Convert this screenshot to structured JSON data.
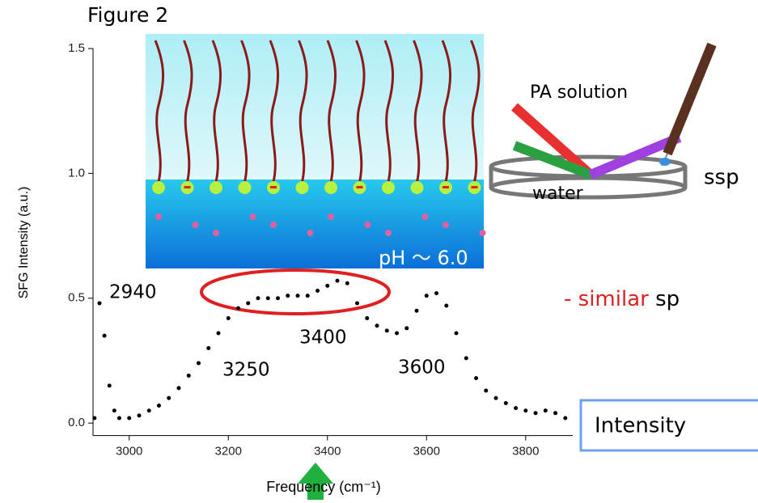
{
  "chart_data": {
    "type": "scatter",
    "title": "Figure 2",
    "x_label": "Frequency (cm⁻¹)",
    "y_label": "SFG Intensity (a.u.)",
    "color": "#000000",
    "xlim": [
      2927,
      3895
    ],
    "ylim": [
      -0.05,
      1.5
    ],
    "xticks": [
      3000,
      3200,
      3400,
      3600,
      3800
    ],
    "yticks": [
      {
        "value": 0,
        "label": "0.0"
      },
      {
        "value": 0.5,
        "label": "0.5"
      },
      {
        "value": 1,
        "label": "1.0"
      },
      {
        "value": 1.5,
        "label": "1.5"
      }
    ],
    "x": [
      2930,
      2940,
      2950,
      2960,
      2970,
      2980,
      3000,
      3020,
      3040,
      3060,
      3080,
      3100,
      3120,
      3140,
      3160,
      3180,
      3200,
      3220,
      3240,
      3260,
      3280,
      3300,
      3320,
      3340,
      3360,
      3380,
      3400,
      3420,
      3440,
      3460,
      3480,
      3500,
      3520,
      3540,
      3560,
      3580,
      3600,
      3620,
      3640,
      3660,
      3680,
      3700,
      3720,
      3740,
      3760,
      3780,
      3800,
      3820,
      3840,
      3860,
      3880
    ],
    "values": [
      0.02,
      0.48,
      0.35,
      0.15,
      0.05,
      0.02,
      0.02,
      0.03,
      0.05,
      0.07,
      0.1,
      0.14,
      0.19,
      0.24,
      0.3,
      0.36,
      0.42,
      0.46,
      0.48,
      0.5,
      0.5,
      0.5,
      0.51,
      0.51,
      0.51,
      0.53,
      0.55,
      0.57,
      0.56,
      0.48,
      0.42,
      0.39,
      0.37,
      0.36,
      0.38,
      0.45,
      0.51,
      0.52,
      0.47,
      0.36,
      0.26,
      0.18,
      0.13,
      0.1,
      0.08,
      0.06,
      0.05,
      0.04,
      0.05,
      0.04,
      0.02
    ],
    "annotations": [
      "2940",
      "3250",
      "3400",
      "3600"
    ]
  },
  "inset": {
    "pa_solution": "PA solution",
    "ssp": "ssp",
    "water": "water",
    "ph": "pH ～ 6.0"
  },
  "slide": {
    "bullet_dash": "-",
    "bullet_highlight": "similar",
    "bullet_rest": "sp",
    "box_text": "Intensity"
  }
}
